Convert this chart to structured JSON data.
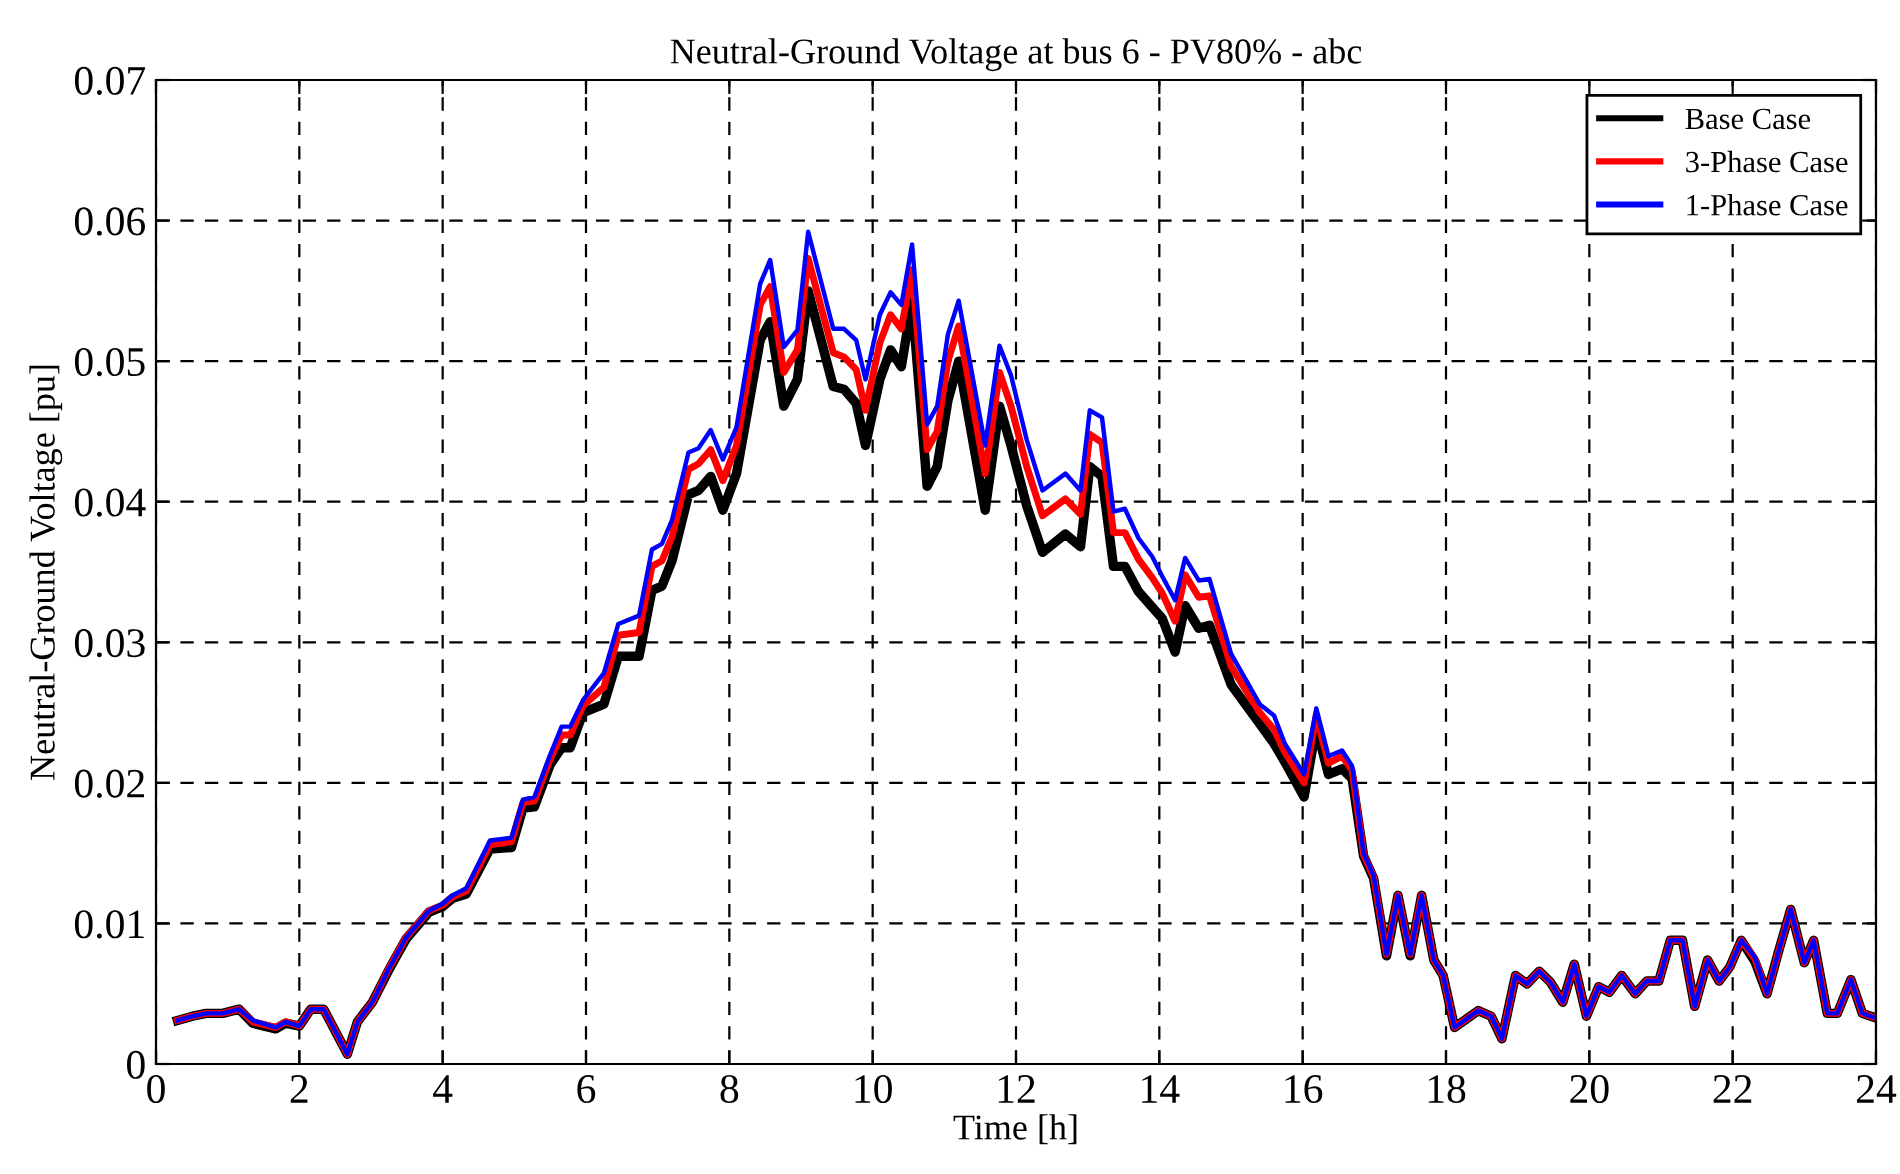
{
  "chart_data": {
    "type": "line",
    "title": "Neutral-Ground Voltage at bus 6 - PV80% - abc",
    "xlabel": "Time [h]",
    "ylabel": "Neutral-Ground Voltage [pu]",
    "x": [
      0.3,
      0.51,
      0.7,
      0.93,
      1.16,
      1.35,
      1.67,
      1.81,
      2.0,
      2.16,
      2.34,
      2.67,
      2.81,
      3.02,
      3.26,
      3.49,
      3.81,
      4.0,
      4.14,
      4.33,
      4.66,
      4.96,
      5.12,
      5.28,
      5.5,
      5.66,
      5.78,
      5.96,
      6.25,
      6.45,
      6.74,
      6.92,
      7.06,
      7.2,
      7.43,
      7.57,
      7.74,
      7.91,
      8.1,
      8.43,
      8.57,
      8.76,
      8.95,
      9.1,
      9.45,
      9.6,
      9.77,
      9.9,
      10.1,
      10.25,
      10.4,
      10.55,
      10.76,
      10.9,
      11.05,
      11.2,
      11.57,
      11.77,
      11.93,
      12.15,
      12.37,
      12.69,
      12.9,
      13.03,
      13.2,
      13.36,
      13.52,
      13.71,
      13.9,
      14.04,
      14.22,
      14.36,
      14.55,
      14.7,
      15.0,
      15.4,
      15.6,
      15.75,
      16.02,
      16.19,
      16.36,
      16.55,
      16.69,
      16.85,
      16.99,
      17.17,
      17.33,
      17.5,
      17.66,
      17.83,
      17.96,
      18.12,
      18.45,
      18.63,
      18.78,
      18.97,
      19.13,
      19.3,
      19.46,
      19.63,
      19.79,
      19.96,
      20.13,
      20.28,
      20.45,
      20.64,
      20.8,
      20.97,
      21.13,
      21.3,
      21.47,
      21.65,
      21.81,
      21.96,
      22.12,
      22.31,
      22.48,
      22.64,
      22.81,
      23.0,
      23.13,
      23.32,
      23.46,
      23.65,
      23.81,
      23.98
    ],
    "series": [
      {
        "name": "Base Case",
        "color": "#000000",
        "values": [
          0.0031,
          0.0034,
          0.0036,
          0.0036,
          0.0039,
          0.0029,
          0.0025,
          0.0029,
          0.0027,
          0.0039,
          0.0039,
          0.0007,
          0.003,
          0.0044,
          0.0068,
          0.0089,
          0.0108,
          0.0112,
          0.0118,
          0.0121,
          0.0153,
          0.0154,
          0.0182,
          0.0183,
          0.0213,
          0.0225,
          0.0225,
          0.025,
          0.0256,
          0.029,
          0.029,
          0.0337,
          0.034,
          0.0358,
          0.0405,
          0.0408,
          0.0418,
          0.0394,
          0.042,
          0.0515,
          0.0528,
          0.0468,
          0.0487,
          0.055,
          0.0482,
          0.048,
          0.047,
          0.044,
          0.0487,
          0.0508,
          0.0496,
          0.0543,
          0.0411,
          0.0425,
          0.0472,
          0.05,
          0.0394,
          0.0468,
          0.044,
          0.0397,
          0.0364,
          0.0377,
          0.0368,
          0.0425,
          0.0418,
          0.0354,
          0.0354,
          0.0336,
          0.0325,
          0.0317,
          0.0293,
          0.0326,
          0.031,
          0.0312,
          0.027,
          0.0242,
          0.0228,
          0.0215,
          0.019,
          0.024,
          0.0206,
          0.021,
          0.0203,
          0.0148,
          0.0132,
          0.0077,
          0.012,
          0.0077,
          0.012,
          0.0074,
          0.0063,
          0.0026,
          0.0038,
          0.0034,
          0.0018,
          0.0063,
          0.0057,
          0.0066,
          0.0058,
          0.0044,
          0.0071,
          0.0034,
          0.0055,
          0.0051,
          0.0063,
          0.005,
          0.0059,
          0.0059,
          0.0088,
          0.0088,
          0.0041,
          0.0074,
          0.0059,
          0.0069,
          0.0088,
          0.0073,
          0.005,
          0.008,
          0.011,
          0.0072,
          0.0088,
          0.0036,
          0.0036,
          0.006,
          0.0036,
          0.0033
        ]
      },
      {
        "name": "3-Phase Case",
        "color": "#ff0000",
        "values": [
          0.0031,
          0.0034,
          0.0036,
          0.0036,
          0.0039,
          0.003,
          0.0026,
          0.003,
          0.0027,
          0.0039,
          0.0039,
          0.0007,
          0.003,
          0.0044,
          0.0069,
          0.009,
          0.0109,
          0.0113,
          0.0119,
          0.0123,
          0.0156,
          0.0158,
          0.0186,
          0.0187,
          0.0217,
          0.0234,
          0.0234,
          0.0255,
          0.0268,
          0.0305,
          0.0307,
          0.0354,
          0.0358,
          0.0375,
          0.0423,
          0.0427,
          0.0437,
          0.0415,
          0.044,
          0.054,
          0.0553,
          0.0492,
          0.0508,
          0.0573,
          0.0506,
          0.0503,
          0.0494,
          0.0465,
          0.0513,
          0.0533,
          0.0523,
          0.0565,
          0.0437,
          0.045,
          0.05,
          0.0525,
          0.042,
          0.0492,
          0.0468,
          0.0425,
          0.039,
          0.0402,
          0.0391,
          0.0448,
          0.0442,
          0.0378,
          0.0378,
          0.0359,
          0.0346,
          0.0335,
          0.0315,
          0.0348,
          0.0332,
          0.0333,
          0.0283,
          0.025,
          0.0238,
          0.0222,
          0.02,
          0.0248,
          0.0214,
          0.0219,
          0.0209,
          0.0149,
          0.0133,
          0.0078,
          0.012,
          0.0078,
          0.012,
          0.0074,
          0.0063,
          0.0026,
          0.0038,
          0.0034,
          0.0018,
          0.0063,
          0.0057,
          0.0066,
          0.0058,
          0.0044,
          0.0071,
          0.0034,
          0.0055,
          0.0051,
          0.0063,
          0.005,
          0.0059,
          0.0059,
          0.0088,
          0.0088,
          0.0041,
          0.0074,
          0.0059,
          0.0069,
          0.0088,
          0.0075,
          0.005,
          0.008,
          0.011,
          0.0072,
          0.0088,
          0.0036,
          0.0036,
          0.006,
          0.0036,
          0.0033
        ]
      },
      {
        "name": "1-Phase Case",
        "color": "#0000ff",
        "values": [
          0.0031,
          0.0034,
          0.0036,
          0.0036,
          0.0039,
          0.0031,
          0.0026,
          0.003,
          0.0027,
          0.0039,
          0.0039,
          0.0007,
          0.003,
          0.0044,
          0.0069,
          0.009,
          0.0109,
          0.0114,
          0.012,
          0.0125,
          0.0159,
          0.0161,
          0.0188,
          0.019,
          0.022,
          0.024,
          0.024,
          0.0259,
          0.0278,
          0.0313,
          0.0319,
          0.0366,
          0.037,
          0.0387,
          0.0435,
          0.0438,
          0.0451,
          0.043,
          0.0453,
          0.0555,
          0.0572,
          0.051,
          0.0522,
          0.0592,
          0.0523,
          0.0523,
          0.0515,
          0.0487,
          0.0533,
          0.0549,
          0.054,
          0.0583,
          0.0455,
          0.0468,
          0.0519,
          0.0543,
          0.044,
          0.0511,
          0.049,
          0.0444,
          0.0408,
          0.042,
          0.0408,
          0.0465,
          0.046,
          0.0393,
          0.0395,
          0.0374,
          0.0361,
          0.0347,
          0.033,
          0.036,
          0.0344,
          0.0345,
          0.0292,
          0.0256,
          0.0248,
          0.0228,
          0.0206,
          0.0253,
          0.0219,
          0.0223,
          0.0212,
          0.015,
          0.0134,
          0.0078,
          0.012,
          0.0078,
          0.012,
          0.0074,
          0.0063,
          0.0026,
          0.0038,
          0.0034,
          0.0018,
          0.0063,
          0.0057,
          0.0066,
          0.0058,
          0.0044,
          0.0071,
          0.0034,
          0.0055,
          0.0051,
          0.0063,
          0.005,
          0.0059,
          0.0059,
          0.0088,
          0.0088,
          0.0041,
          0.0074,
          0.0059,
          0.0069,
          0.0088,
          0.0076,
          0.005,
          0.008,
          0.011,
          0.0072,
          0.0088,
          0.0036,
          0.0036,
          0.006,
          0.0036,
          0.0033
        ]
      }
    ],
    "xlim": [
      0,
      24
    ],
    "xticks": [
      0,
      2,
      4,
      6,
      8,
      10,
      12,
      14,
      16,
      18,
      20,
      22,
      24
    ],
    "ylim": [
      0,
      0.07
    ],
    "yticks": [
      0,
      0.01,
      0.02,
      0.03,
      0.04,
      0.05,
      0.06,
      0.07
    ],
    "grid": true,
    "legend": "top right",
    "marker": "none",
    "line_style": "solid"
  }
}
